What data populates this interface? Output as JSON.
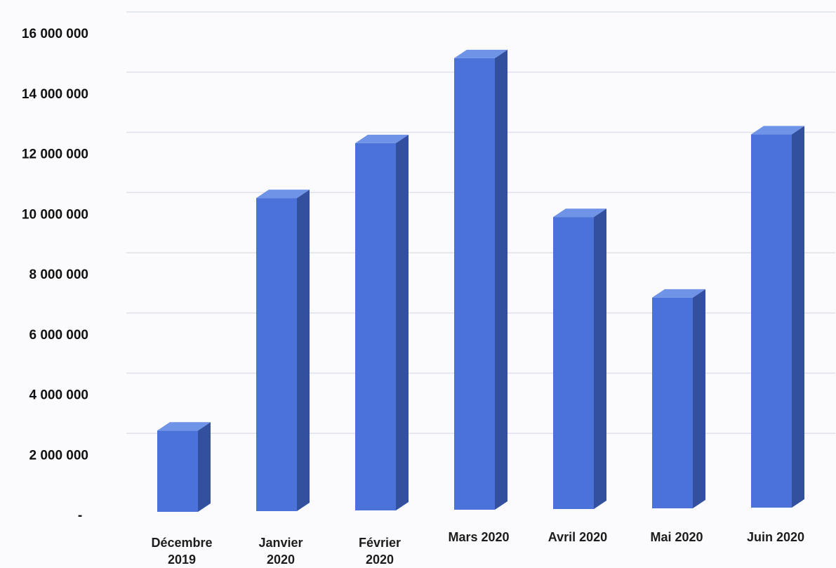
{
  "chart_data": {
    "type": "bar",
    "title": "",
    "xlabel": "",
    "ylabel": "",
    "categories": [
      [
        "Décembre",
        "2019"
      ],
      [
        "Janvier",
        "2020"
      ],
      [
        "Février",
        "2020"
      ],
      [
        "Mars 2020"
      ],
      [
        "Avril 2020"
      ],
      [
        "Mai 2020"
      ],
      [
        "Juin 2020"
      ]
    ],
    "values": [
      2700000,
      10400000,
      12200000,
      15000000,
      9700000,
      7000000,
      12400000
    ],
    "ylim": [
      0,
      16000000
    ],
    "yticks": [
      0,
      2000000,
      4000000,
      6000000,
      8000000,
      10000000,
      12000000,
      14000000,
      16000000
    ],
    "ytick_labels": [
      "-",
      "2 000 000",
      "4 000 000",
      "6 000 000",
      "8 000 000",
      "10 000 000",
      "12 000 000",
      "14 000 000",
      "16 000 000"
    ],
    "grid": true,
    "legend": "none",
    "style": "3d-column",
    "colors": {
      "bar_front": "#4a72d8",
      "bar_side": "#33509f",
      "bar_top": "#6f93e6",
      "grid": "#dfe2ec"
    }
  }
}
